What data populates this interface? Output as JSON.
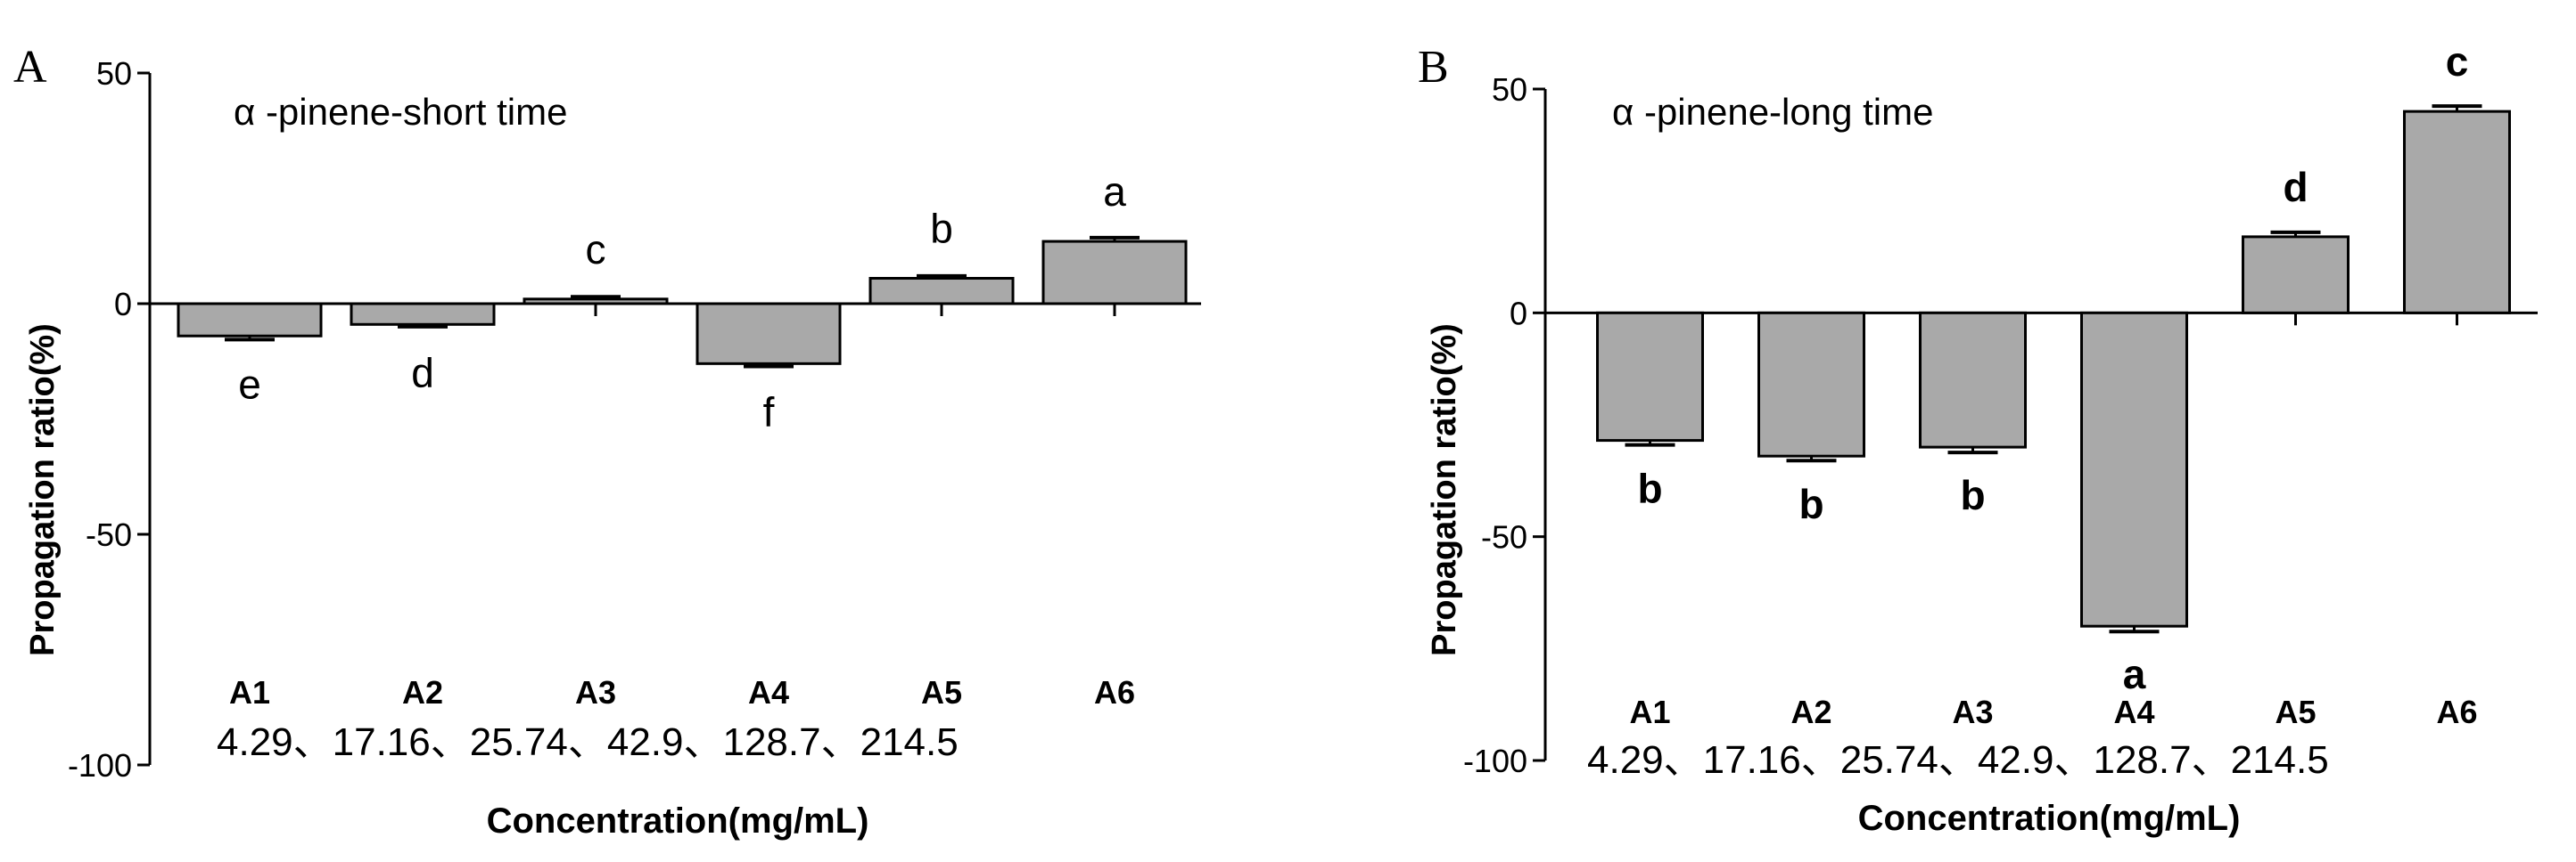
{
  "chart_data": [
    {
      "type": "bar",
      "panel": "A",
      "title": "α -pinene-short time",
      "ylabel": "Propagation ratio(%)",
      "xlabel": "Concentration(mg/mL)",
      "ylim": [
        -100,
        50
      ],
      "yticks": [
        50,
        0,
        -50,
        -100
      ],
      "categories": [
        "A1",
        "A2",
        "A3",
        "A4",
        "A5",
        "A6"
      ],
      "concentration_line": "4.29、17.16、25.74、42.9、128.7、214.5",
      "values": [
        -7,
        -4.5,
        1,
        -13,
        5.5,
        13.5
      ],
      "errors": [
        0.8,
        0.5,
        0.5,
        0.6,
        0.5,
        0.8
      ],
      "significance": [
        "e",
        "d",
        "c",
        "f",
        "b",
        "a"
      ],
      "significance_bold": false,
      "bar_color": "#a9a9a9"
    },
    {
      "type": "bar",
      "panel": "B",
      "title": "α -pinene-long time",
      "ylabel": "Propagation ratio(%)",
      "xlabel": "Concentration(mg/mL)",
      "ylim": [
        -100,
        50
      ],
      "yticks": [
        50,
        0,
        -50,
        -100
      ],
      "categories": [
        "A1",
        "A2",
        "A3",
        "A4",
        "A5",
        "A6"
      ],
      "concentration_line": "4.29、17.16、25.74、42.9、128.7、214.5",
      "values": [
        -28.5,
        -32,
        -30,
        -70,
        17,
        45
      ],
      "errors": [
        1.0,
        1.0,
        1.2,
        1.2,
        1.0,
        1.2
      ],
      "significance": [
        "b",
        "b",
        "b",
        "a",
        "d",
        "c"
      ],
      "significance_bold": true,
      "bar_color": "#a9a9a9"
    }
  ]
}
